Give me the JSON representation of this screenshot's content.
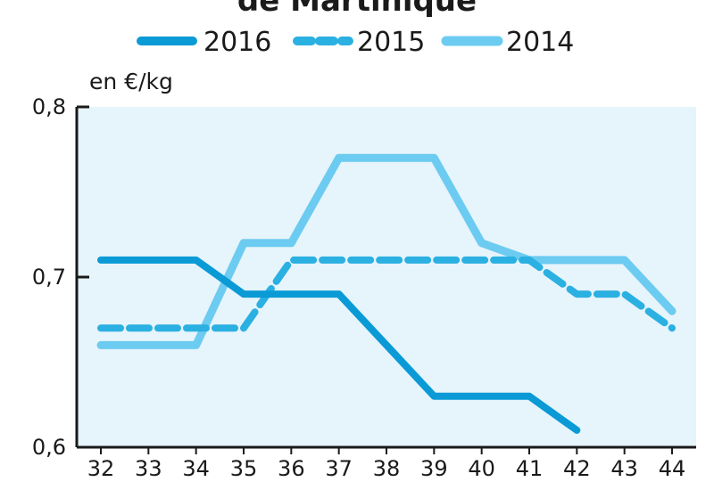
{
  "chart_data": {
    "type": "line",
    "title": "de Martinique",
    "ylabel": "en €/kg",
    "xlabel": "",
    "x": [
      32,
      33,
      34,
      35,
      36,
      37,
      38,
      39,
      40,
      41,
      42,
      43,
      44
    ],
    "x_tick_labels": [
      "32",
      "33",
      "34",
      "35",
      "36",
      "37",
      "38",
      "39",
      "40",
      "41",
      "42",
      "43",
      "44"
    ],
    "ylim": [
      0.6,
      0.8
    ],
    "y_tick_labels": [
      "0,6",
      "0,7",
      "0,8"
    ],
    "grid": false,
    "legend_position": "top",
    "series": [
      {
        "name": "2016",
        "style": "solid",
        "color": "#0a9ad6",
        "values": [
          0.71,
          0.71,
          0.71,
          0.69,
          0.69,
          0.69,
          0.66,
          0.63,
          0.63,
          0.63,
          0.61,
          null,
          null
        ]
      },
      {
        "name": "2015",
        "style": "dashed",
        "color": "#2bb0e2",
        "values": [
          0.67,
          0.67,
          0.67,
          0.67,
          0.71,
          0.71,
          0.71,
          0.71,
          0.71,
          0.71,
          0.69,
          0.69,
          0.67
        ]
      },
      {
        "name": "2014",
        "style": "solid-light",
        "color": "#6ccbf0",
        "values": [
          0.66,
          0.66,
          0.66,
          0.72,
          0.72,
          0.77,
          0.77,
          0.77,
          0.72,
          0.71,
          0.71,
          0.71,
          0.68
        ]
      }
    ],
    "plot_background": "#e6f4fb",
    "axis_color": "#1a1a1a"
  }
}
